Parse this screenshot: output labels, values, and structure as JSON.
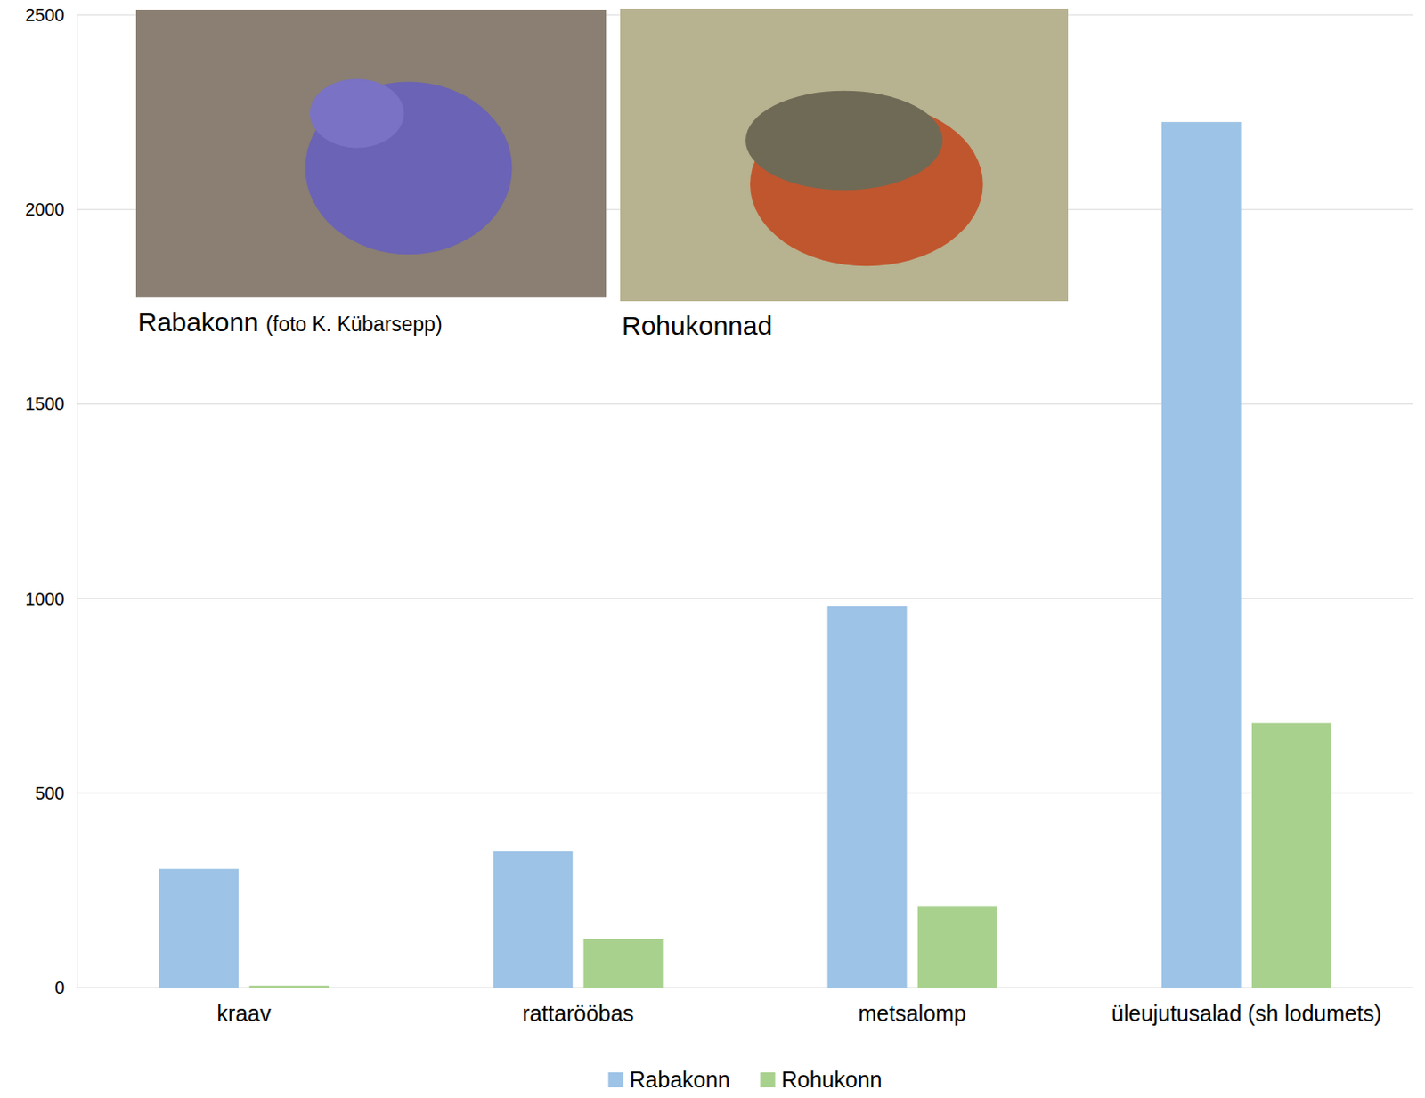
{
  "chart_data": {
    "type": "bar",
    "categories": [
      "kraav",
      "rattarööbas",
      "metsalomp",
      "üleujutusalad (sh lodumets)"
    ],
    "series": [
      {
        "name": "Rabakonn",
        "color": "#9dc3e6",
        "values": [
          305,
          350,
          980,
          2225
        ]
      },
      {
        "name": "Rohukonn",
        "color": "#a9d18e",
        "values": [
          5,
          125,
          210,
          680
        ]
      }
    ],
    "ylim": [
      0,
      2500
    ],
    "yticks": [
      0,
      500,
      1000,
      1500,
      2000,
      2500
    ],
    "grid": true,
    "legend": "bottom",
    "annotations": [
      "Rabakonn (foto K. Kübarsepp)",
      "Rohukonnad"
    ]
  }
}
